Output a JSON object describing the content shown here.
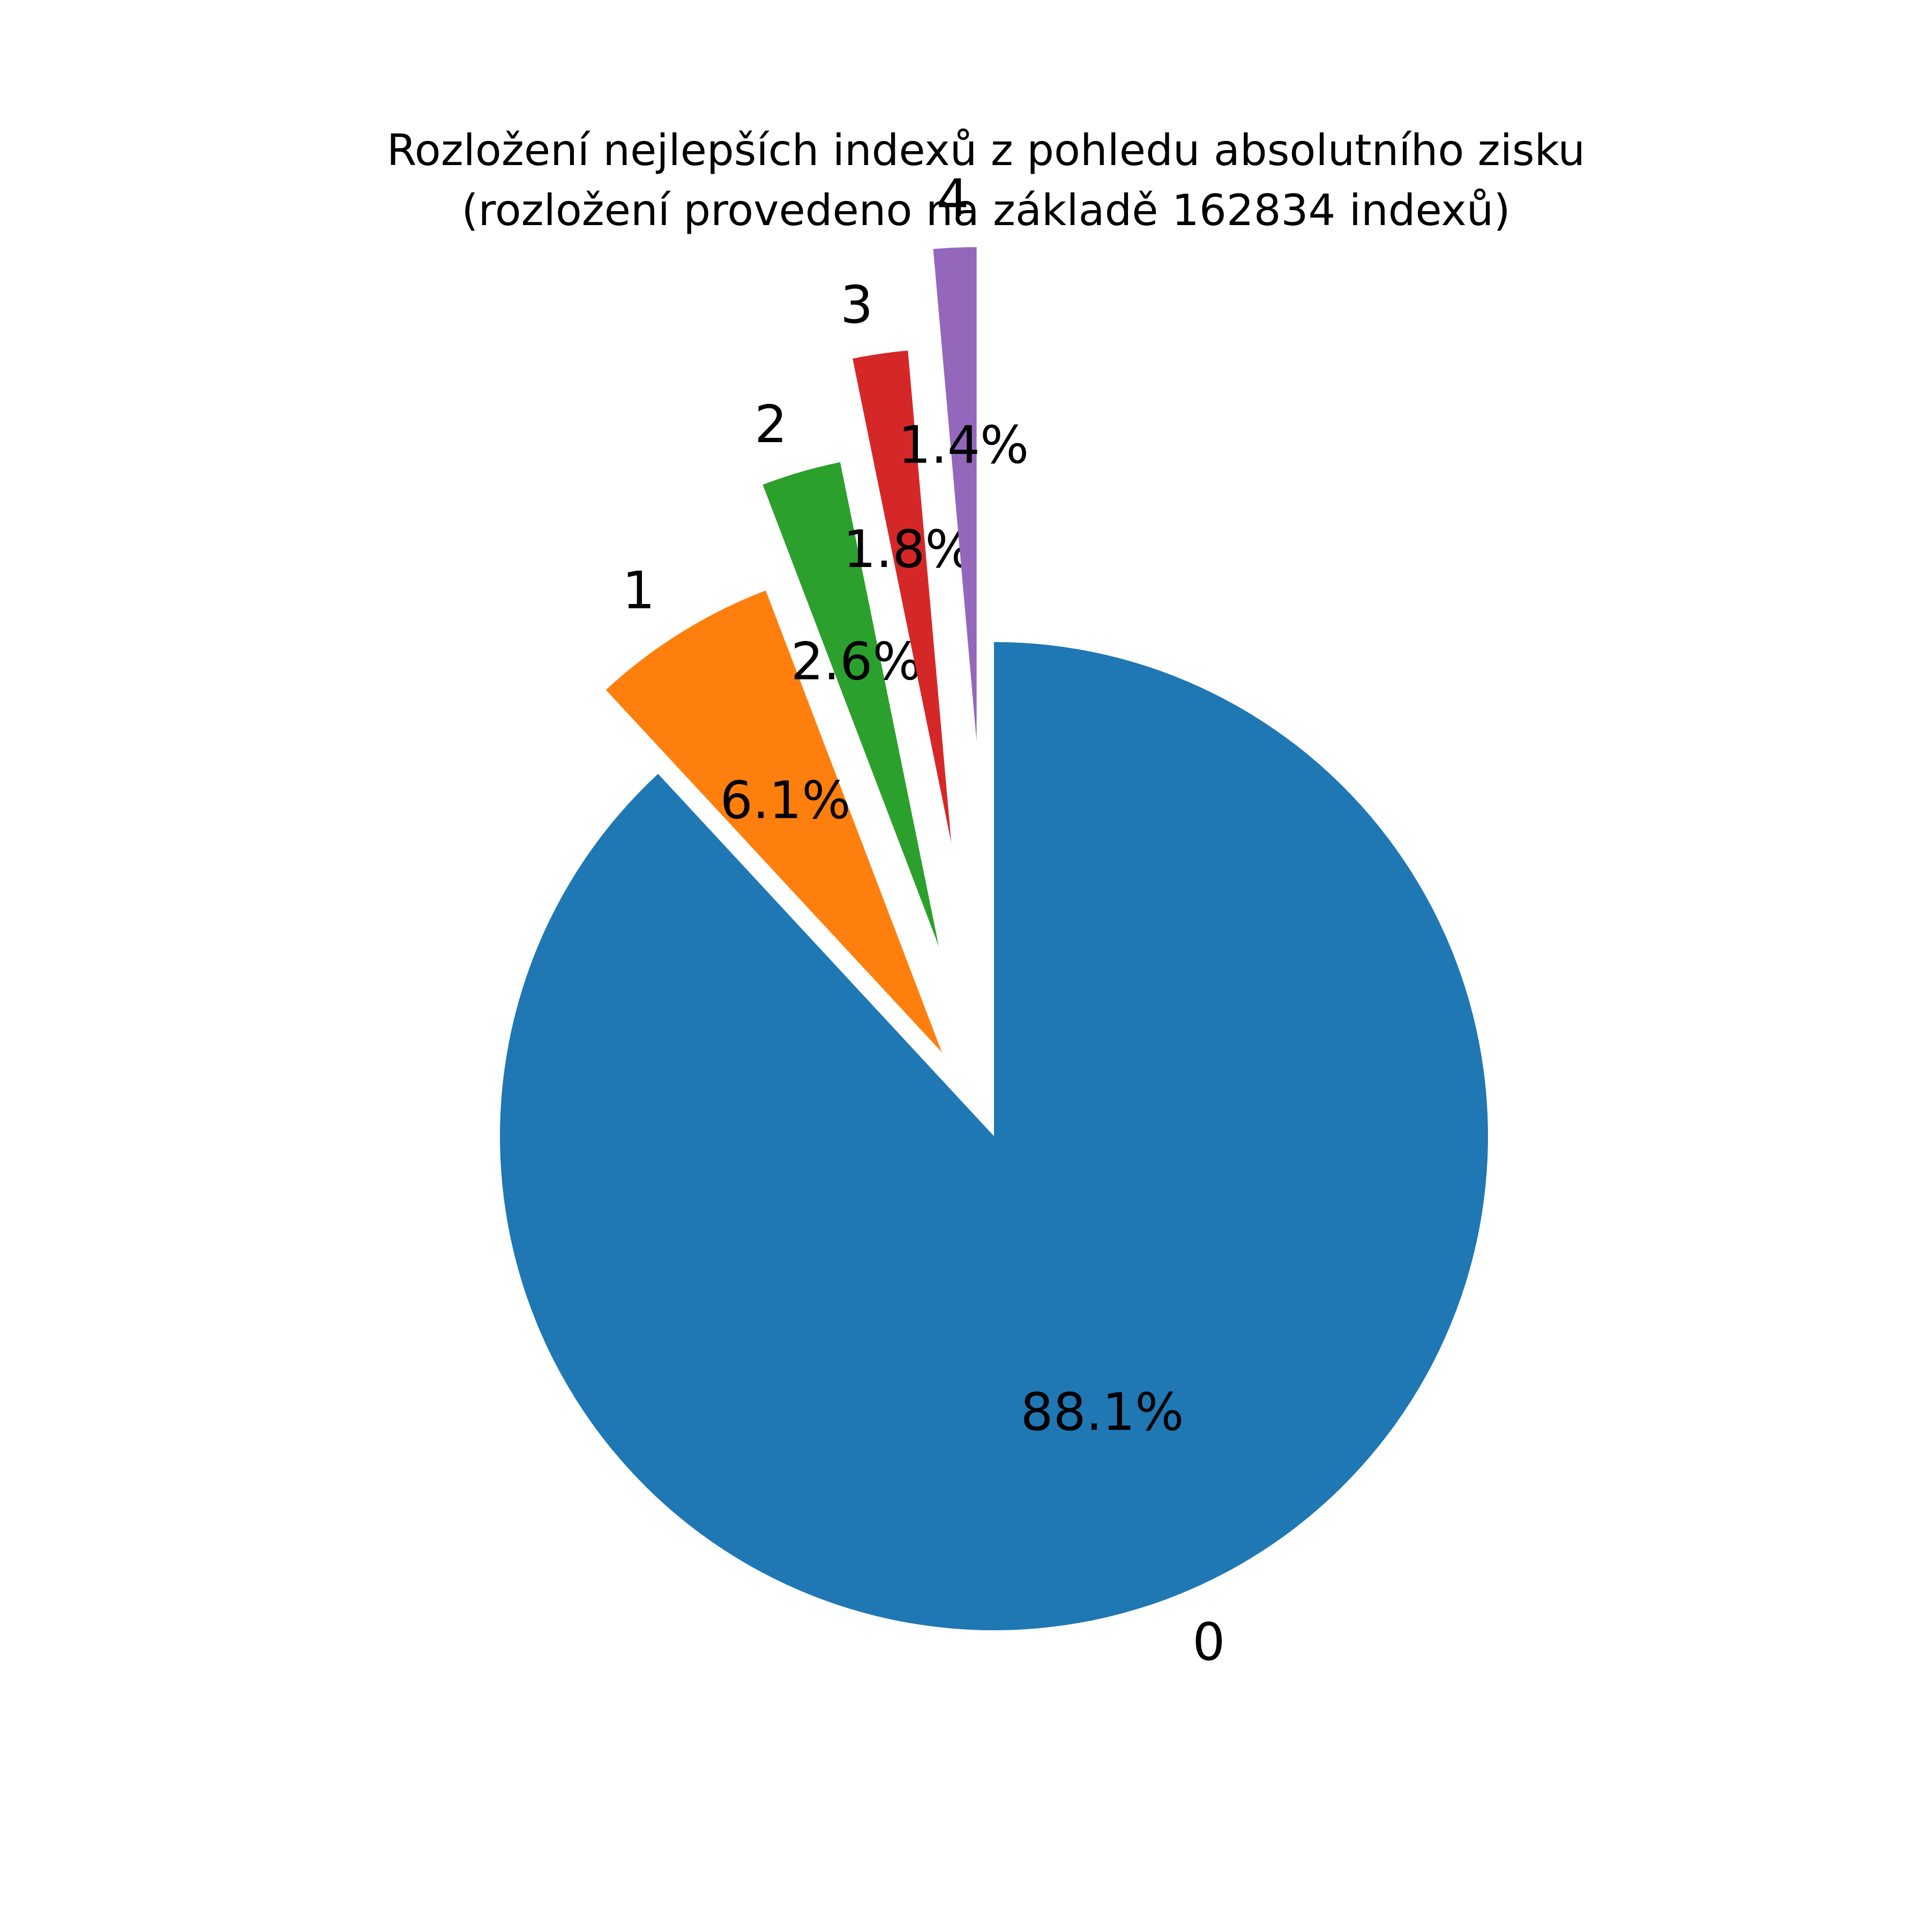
{
  "chart_data": {
    "type": "pie",
    "title": "Rozložení nejlepších indexů z pohledu absolutního zisku",
    "subtitle": "(rozložení provedeno na základě 162834 indexů)",
    "categories": [
      "0",
      "1",
      "2",
      "3",
      "4"
    ],
    "values": [
      88.1,
      6.1,
      2.6,
      1.8,
      1.4
    ],
    "value_labels": [
      "88.1%",
      "6.1%",
      "2.6%",
      "1.8%",
      "1.4%"
    ],
    "colors": [
      "#1f77b4",
      "#ff7f0e",
      "#2ca02c",
      "#d62728",
      "#9467bd"
    ],
    "explode": [
      0,
      0.2,
      0.4,
      0.6,
      0.8
    ],
    "start_angle": 90,
    "direction": "clockwise",
    "legend": "none"
  }
}
